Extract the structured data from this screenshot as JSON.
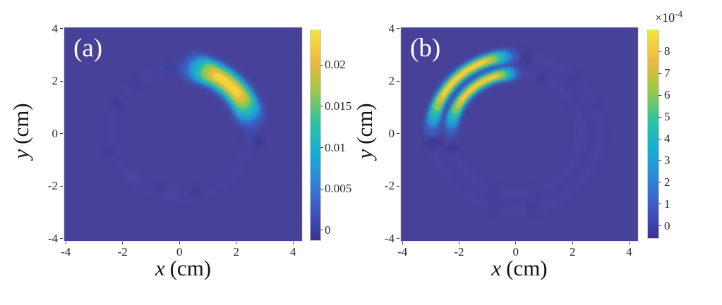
{
  "chart_data": {
    "type": "heatmap",
    "colormap": {
      "name": "parula",
      "stops": [
        "#3B3092",
        "#4056C8",
        "#2E87D8",
        "#15AFD4",
        "#2EC49B",
        "#9FC845",
        "#EFB93F",
        "#F5E53B"
      ]
    },
    "background_value_color": "#474199",
    "dark_spot_color": "#332D88",
    "faint_ring_color": "#4E4BAB",
    "panels": [
      {
        "id": "a",
        "label": "(a)",
        "xlabel": {
          "var": "x",
          "unit": "(cm)"
        },
        "ylabel": {
          "var": "y",
          "unit": "(cm)"
        },
        "xlim": [
          -4.08,
          4.34
        ],
        "ylim": [
          -4.11,
          4.08
        ],
        "xticks": [
          -4,
          -2,
          0,
          2,
          4
        ],
        "xtick_labels": [
          "-4",
          "-2",
          "0",
          "2",
          "4"
        ],
        "yticks": [
          -4,
          -2,
          0,
          2,
          4
        ],
        "ytick_labels": [
          "-4",
          "-2",
          "0",
          "2",
          "4"
        ],
        "colorbar": {
          "clim": [
            -0.0012,
            0.0242
          ],
          "ticks": [
            0,
            0.005,
            0.01,
            0.015,
            0.02
          ],
          "labels": [
            "0",
            "0.005",
            "0.01",
            "0.015",
            "0.02"
          ],
          "scale": null
        },
        "background_value": 0,
        "features": {
          "lobes": [
            {
              "type": "crescent",
              "radius_cm": 2.58,
              "angle_start_deg": 18,
              "angle_end_deg": 76,
              "core_start_deg": 37,
              "core_end_deg": 59,
              "radial_width_cm": 0.88,
              "peak_value": 0.0235
            }
          ],
          "tail_arcs": [
            {
              "radius_cm": 2.55,
              "angle_start_deg": -6,
              "angle_end_deg": 102,
              "width_cm": 0.42,
              "opacity": 0.28
            }
          ],
          "faint_rings": [
            {
              "radius_cm": 2.45,
              "width_cm": 0.3,
              "opacity": 0.26
            }
          ],
          "dark_spots": [
            {
              "angle_deg": 98,
              "radius_cm": 2.55,
              "strength": 0.7
            },
            {
              "angle_deg": 128,
              "radius_cm": 2.5,
              "strength": 0.4
            },
            {
              "angle_deg": 152,
              "radius_cm": 2.5,
              "strength": 0.45
            },
            {
              "angle_deg": 196,
              "radius_cm": 2.55,
              "strength": 0.35
            },
            {
              "angle_deg": 252,
              "radius_cm": 2.25,
              "strength": 0.35
            },
            {
              "angle_deg": 285,
              "radius_cm": 2.3,
              "strength": 0.4
            },
            {
              "angle_deg": 354,
              "radius_cm": 2.8,
              "strength": 0.65
            }
          ],
          "light_smudges": [
            {
              "angle_deg": 226,
              "radius_cm": 2.35
            },
            {
              "angle_deg": 262,
              "radius_cm": 2.3
            }
          ]
        }
      },
      {
        "id": "b",
        "label": "(b)",
        "xlabel": {
          "var": "x",
          "unit": "(cm)"
        },
        "ylabel": {
          "var": "y",
          "unit": "(cm)"
        },
        "xlim": [
          -4.08,
          4.34
        ],
        "ylim": [
          -4.11,
          4.08
        ],
        "xticks": [
          -4,
          -2,
          0,
          2,
          4
        ],
        "xtick_labels": [
          "-4",
          "-2",
          "0",
          "2",
          "4"
        ],
        "yticks": [
          -4,
          -2,
          0,
          2,
          4
        ],
        "ytick_labels": [
          "-4",
          "-2",
          "0",
          "2",
          "4"
        ],
        "colorbar": {
          "clim": [
            -0.55,
            8.97
          ],
          "ticks": [
            0,
            1,
            2,
            3,
            4,
            5,
            6,
            7,
            8
          ],
          "labels": [
            "0",
            "1",
            "2",
            "3",
            "4",
            "5",
            "6",
            "7",
            "8"
          ],
          "scale": {
            "mant": "×10",
            "exp": "-4"
          }
        },
        "background_value": 0,
        "features": {
          "lobes": [
            {
              "type": "arc",
              "radius_cm": 2.98,
              "angle_start_deg": 94,
              "angle_end_deg": 176,
              "core_start_deg": 112,
              "core_end_deg": 150,
              "radial_width_cm": 0.42,
              "peak_value": 8.6
            },
            {
              "type": "arc",
              "radius_cm": 2.32,
              "angle_start_deg": 92,
              "angle_end_deg": 176,
              "core_start_deg": 108,
              "core_end_deg": 146,
              "radial_width_cm": 0.4,
              "peak_value": 8.4
            }
          ],
          "tail_arcs": [],
          "faint_rings": [
            {
              "radius_cm": 2.32,
              "width_cm": 0.25,
              "opacity": 0.5
            },
            {
              "radius_cm": 2.98,
              "width_cm": 0.25,
              "opacity": 0.45
            }
          ],
          "dark_spots": [
            {
              "angle_deg": 82,
              "radius_cm": 2.98,
              "strength": 0.6
            },
            {
              "angle_deg": 45,
              "radius_cm": 2.98,
              "strength": 0.35
            },
            {
              "angle_deg": 186,
              "radius_cm": 2.98,
              "strength": 0.65
            },
            {
              "angle_deg": 255,
              "radius_cm": 2.98,
              "strength": 0.4
            },
            {
              "angle_deg": 282,
              "radius_cm": 2.98,
              "strength": 0.35
            },
            {
              "angle_deg": 20,
              "radius_cm": 2.98,
              "strength": 0.25
            },
            {
              "angle_deg": 67,
              "radius_cm": 2.32,
              "strength": 0.55
            },
            {
              "angle_deg": 194,
              "radius_cm": 2.32,
              "strength": 0.6
            },
            {
              "angle_deg": 250,
              "radius_cm": 2.32,
              "strength": 0.35
            },
            {
              "angle_deg": 288,
              "radius_cm": 2.32,
              "strength": 0.3
            },
            {
              "angle_deg": 30,
              "radius_cm": 2.32,
              "strength": 0.2
            }
          ],
          "light_smudges": []
        }
      }
    ]
  }
}
